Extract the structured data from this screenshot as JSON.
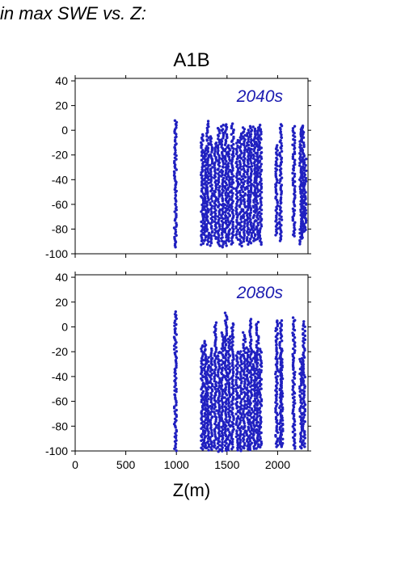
{
  "figure_title": "in max SWE vs. Z:",
  "chart_data": {
    "type": "scatter",
    "title": "A1B",
    "xlabel": "Z(m)",
    "ylabel": "",
    "xlim": [
      0,
      2300
    ],
    "x_ticks": [
      0,
      500,
      1000,
      1500,
      2000
    ],
    "ylim": [
      -100,
      42
    ],
    "y_ticks": [
      40,
      20,
      0,
      -20,
      -40,
      -60,
      -80,
      -100
    ],
    "grid": false,
    "marker_color": "#2020c0",
    "label_color": "#1a1ab0",
    "panels": [
      {
        "label": "2040s",
        "columns": [
          {
            "x": 990,
            "y_min": -95,
            "y_max": 8
          },
          {
            "x": 1255,
            "y_min": -93,
            "y_max": -3
          },
          {
            "x": 1285,
            "y_min": -90,
            "y_max": -15
          },
          {
            "x": 1310,
            "y_min": -92,
            "y_max": 7
          },
          {
            "x": 1345,
            "y_min": -93,
            "y_max": -5
          },
          {
            "x": 1385,
            "y_min": -88,
            "y_max": -10
          },
          {
            "x": 1420,
            "y_min": -94,
            "y_max": 2
          },
          {
            "x": 1455,
            "y_min": -95,
            "y_max": 4
          },
          {
            "x": 1490,
            "y_min": -93,
            "y_max": 5
          },
          {
            "x": 1520,
            "y_min": -90,
            "y_max": -12
          },
          {
            "x": 1555,
            "y_min": -92,
            "y_max": 5
          },
          {
            "x": 1600,
            "y_min": -88,
            "y_max": -8
          },
          {
            "x": 1635,
            "y_min": -94,
            "y_max": -3
          },
          {
            "x": 1670,
            "y_min": -90,
            "y_max": 2
          },
          {
            "x": 1705,
            "y_min": -92,
            "y_max": 0
          },
          {
            "x": 1735,
            "y_min": -91,
            "y_max": 3
          },
          {
            "x": 1770,
            "y_min": -90,
            "y_max": 3
          },
          {
            "x": 1800,
            "y_min": -88,
            "y_max": 2
          },
          {
            "x": 1830,
            "y_min": -92,
            "y_max": 4
          },
          {
            "x": 1990,
            "y_min": -85,
            "y_max": -12
          },
          {
            "x": 2030,
            "y_min": -90,
            "y_max": 5
          },
          {
            "x": 2160,
            "y_min": -86,
            "y_max": 3
          },
          {
            "x": 2230,
            "y_min": -92,
            "y_max": 2
          },
          {
            "x": 2250,
            "y_min": -88,
            "y_max": 4
          },
          {
            "x": 2270,
            "y_min": -82,
            "y_max": -20
          }
        ]
      },
      {
        "label": "2080s",
        "columns": [
          {
            "x": 990,
            "y_min": -100,
            "y_max": 12
          },
          {
            "x": 1255,
            "y_min": -99,
            "y_max": -15
          },
          {
            "x": 1285,
            "y_min": -98,
            "y_max": -12
          },
          {
            "x": 1310,
            "y_min": -99,
            "y_max": -25
          },
          {
            "x": 1345,
            "y_min": -99,
            "y_max": -18
          },
          {
            "x": 1385,
            "y_min": -98,
            "y_max": 3
          },
          {
            "x": 1420,
            "y_min": -100,
            "y_max": -20
          },
          {
            "x": 1455,
            "y_min": -100,
            "y_max": -5
          },
          {
            "x": 1490,
            "y_min": -100,
            "y_max": 11
          },
          {
            "x": 1520,
            "y_min": -99,
            "y_max": -8
          },
          {
            "x": 1555,
            "y_min": -98,
            "y_max": 3
          },
          {
            "x": 1600,
            "y_min": -99,
            "y_max": -20
          },
          {
            "x": 1635,
            "y_min": -100,
            "y_max": -20
          },
          {
            "x": 1670,
            "y_min": -98,
            "y_max": -5
          },
          {
            "x": 1705,
            "y_min": -99,
            "y_max": -17
          },
          {
            "x": 1735,
            "y_min": -99,
            "y_max": 6
          },
          {
            "x": 1770,
            "y_min": -98,
            "y_max": -20
          },
          {
            "x": 1800,
            "y_min": -98,
            "y_max": 4
          },
          {
            "x": 1830,
            "y_min": -97,
            "y_max": -18
          },
          {
            "x": 1990,
            "y_min": -97,
            "y_max": 5
          },
          {
            "x": 2030,
            "y_min": -97,
            "y_max": 5
          },
          {
            "x": 2040,
            "y_min": -95,
            "y_max": -18
          },
          {
            "x": 2160,
            "y_min": -98,
            "y_max": 7
          },
          {
            "x": 2230,
            "y_min": -98,
            "y_max": -25
          },
          {
            "x": 2260,
            "y_min": -97,
            "y_max": 4
          }
        ]
      }
    ]
  }
}
